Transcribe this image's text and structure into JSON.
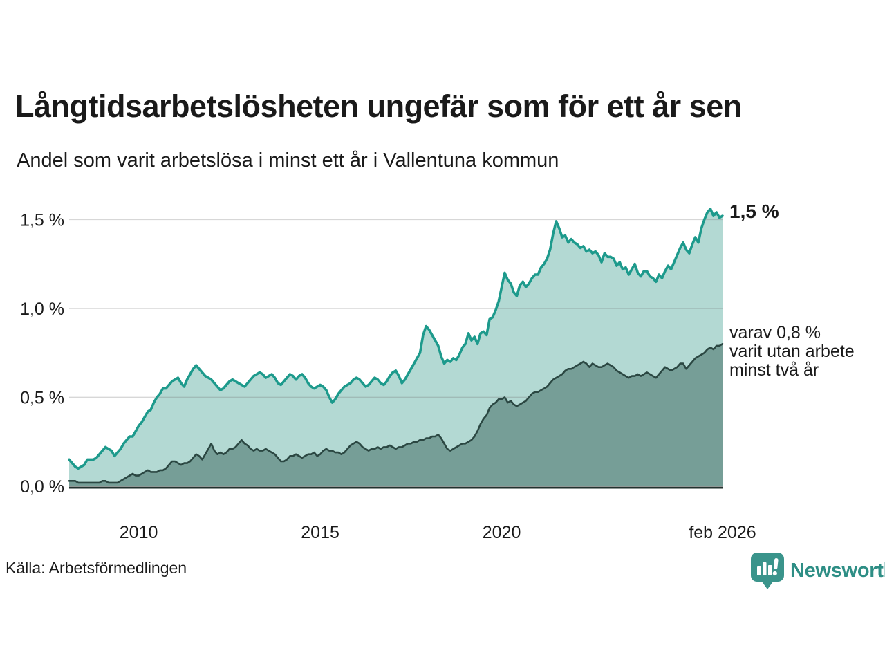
{
  "header": {
    "title": "Långtidsarbetslösheten ungefär som för ett år sen",
    "subtitle": "Andel som varit arbetslösa i minst ett år i Vallentuna kommun"
  },
  "annotations": {
    "end_value_label": "1,5 %",
    "secondary_line1": "varav 0,8 %",
    "secondary_line2": "varit utan arbete",
    "secondary_line3": "minst två år"
  },
  "footer": {
    "source": "Källa: Arbetsförmedlingen",
    "brand": "Newsworthy"
  },
  "colors": {
    "accent_line": "#1d9a8c",
    "accent_fill": "#b3d9d3",
    "ink_line": "#2b4742",
    "ink_fill": "#769e97",
    "axis": "#22312e",
    "grid": "#d7d7d7",
    "brand_teal": "#3a948b",
    "text": "#1a1a1a"
  },
  "chart_data": {
    "type": "area",
    "title": "Långtidsarbetslösheten ungefär som för ett år sen",
    "subtitle": "Andel som varit arbetslösa i minst ett år i Vallentuna kommun",
    "x_unit": "month",
    "x_start_decimal_year": 2008.0833,
    "x_end_decimal_year": 2026.0833,
    "x_end_label": "feb 2026",
    "ylim": [
      0,
      1.56
    ],
    "grid": true,
    "legend_position": "annotations-right",
    "yticks": [
      {
        "value": 0.0,
        "label": "0,0 %"
      },
      {
        "value": 0.5,
        "label": "0,5 %"
      },
      {
        "value": 1.0,
        "label": "1,0 %"
      },
      {
        "value": 1.5,
        "label": "1,5 %"
      }
    ],
    "xticks": [
      {
        "value": 2010,
        "label": "2010"
      },
      {
        "value": 2015,
        "label": "2015"
      },
      {
        "value": 2020,
        "label": "2020"
      },
      {
        "value": 2026.0833,
        "label": "feb 2026"
      }
    ],
    "series": [
      {
        "name": "Andel som varit arbetslösa i minst ett år",
        "end_label": "1,5 %",
        "end_value": 1.5,
        "values": [
          0.15,
          0.13,
          0.11,
          0.1,
          0.11,
          0.12,
          0.15,
          0.15,
          0.15,
          0.16,
          0.18,
          0.2,
          0.22,
          0.21,
          0.2,
          0.17,
          0.19,
          0.21,
          0.24,
          0.26,
          0.28,
          0.28,
          0.31,
          0.34,
          0.36,
          0.39,
          0.42,
          0.43,
          0.47,
          0.5,
          0.52,
          0.55,
          0.55,
          0.57,
          0.59,
          0.6,
          0.61,
          0.58,
          0.56,
          0.6,
          0.63,
          0.66,
          0.68,
          0.66,
          0.64,
          0.62,
          0.61,
          0.6,
          0.58,
          0.56,
          0.54,
          0.55,
          0.57,
          0.59,
          0.6,
          0.59,
          0.58,
          0.57,
          0.56,
          0.58,
          0.6,
          0.62,
          0.63,
          0.64,
          0.63,
          0.61,
          0.62,
          0.63,
          0.61,
          0.58,
          0.57,
          0.59,
          0.61,
          0.63,
          0.62,
          0.6,
          0.62,
          0.63,
          0.61,
          0.58,
          0.56,
          0.55,
          0.56,
          0.57,
          0.56,
          0.54,
          0.5,
          0.47,
          0.49,
          0.52,
          0.54,
          0.56,
          0.57,
          0.58,
          0.6,
          0.61,
          0.6,
          0.58,
          0.56,
          0.57,
          0.59,
          0.61,
          0.6,
          0.58,
          0.57,
          0.59,
          0.62,
          0.64,
          0.65,
          0.62,
          0.58,
          0.6,
          0.63,
          0.66,
          0.69,
          0.72,
          0.75,
          0.85,
          0.9,
          0.88,
          0.85,
          0.82,
          0.79,
          0.73,
          0.69,
          0.71,
          0.7,
          0.72,
          0.71,
          0.74,
          0.78,
          0.8,
          0.86,
          0.82,
          0.84,
          0.8,
          0.86,
          0.87,
          0.85,
          0.94,
          0.95,
          0.99,
          1.04,
          1.12,
          1.2,
          1.16,
          1.14,
          1.09,
          1.07,
          1.13,
          1.15,
          1.12,
          1.14,
          1.17,
          1.19,
          1.19,
          1.23,
          1.25,
          1.28,
          1.33,
          1.42,
          1.49,
          1.45,
          1.4,
          1.41,
          1.37,
          1.39,
          1.37,
          1.36,
          1.34,
          1.35,
          1.32,
          1.33,
          1.31,
          1.32,
          1.3,
          1.26,
          1.31,
          1.29,
          1.29,
          1.28,
          1.24,
          1.26,
          1.22,
          1.23,
          1.19,
          1.22,
          1.25,
          1.2,
          1.18,
          1.21,
          1.21,
          1.18,
          1.17,
          1.15,
          1.19,
          1.17,
          1.21,
          1.24,
          1.22,
          1.26,
          1.3,
          1.34,
          1.37,
          1.33,
          1.31,
          1.36,
          1.4,
          1.37,
          1.45,
          1.5,
          1.54,
          1.56,
          1.52,
          1.54,
          1.51,
          1.52
        ]
      },
      {
        "name": "varav utan arbete minst två år",
        "end_label": "varav 0,8 % varit utan arbete minst två år",
        "end_value": 0.8,
        "values": [
          0.03,
          0.03,
          0.03,
          0.02,
          0.02,
          0.02,
          0.02,
          0.02,
          0.02,
          0.02,
          0.02,
          0.03,
          0.03,
          0.02,
          0.02,
          0.02,
          0.02,
          0.03,
          0.04,
          0.05,
          0.06,
          0.07,
          0.06,
          0.06,
          0.07,
          0.08,
          0.09,
          0.08,
          0.08,
          0.08,
          0.09,
          0.09,
          0.1,
          0.12,
          0.14,
          0.14,
          0.13,
          0.12,
          0.13,
          0.13,
          0.14,
          0.16,
          0.18,
          0.17,
          0.15,
          0.18,
          0.21,
          0.24,
          0.2,
          0.18,
          0.19,
          0.18,
          0.19,
          0.21,
          0.21,
          0.22,
          0.24,
          0.26,
          0.24,
          0.23,
          0.21,
          0.2,
          0.21,
          0.2,
          0.2,
          0.21,
          0.2,
          0.19,
          0.18,
          0.16,
          0.14,
          0.14,
          0.15,
          0.17,
          0.17,
          0.18,
          0.17,
          0.16,
          0.17,
          0.18,
          0.18,
          0.19,
          0.17,
          0.18,
          0.2,
          0.21,
          0.2,
          0.2,
          0.19,
          0.19,
          0.18,
          0.19,
          0.21,
          0.23,
          0.24,
          0.25,
          0.24,
          0.22,
          0.21,
          0.2,
          0.21,
          0.21,
          0.22,
          0.21,
          0.22,
          0.22,
          0.23,
          0.22,
          0.21,
          0.22,
          0.22,
          0.23,
          0.24,
          0.24,
          0.25,
          0.25,
          0.26,
          0.26,
          0.27,
          0.27,
          0.28,
          0.28,
          0.29,
          0.27,
          0.24,
          0.21,
          0.2,
          0.21,
          0.22,
          0.23,
          0.24,
          0.24,
          0.25,
          0.26,
          0.28,
          0.31,
          0.35,
          0.38,
          0.4,
          0.44,
          0.46,
          0.47,
          0.49,
          0.49,
          0.5,
          0.47,
          0.48,
          0.46,
          0.45,
          0.46,
          0.47,
          0.48,
          0.5,
          0.52,
          0.53,
          0.53,
          0.54,
          0.55,
          0.56,
          0.58,
          0.6,
          0.61,
          0.62,
          0.63,
          0.65,
          0.66,
          0.66,
          0.67,
          0.68,
          0.69,
          0.7,
          0.69,
          0.67,
          0.69,
          0.68,
          0.67,
          0.67,
          0.68,
          0.69,
          0.68,
          0.67,
          0.65,
          0.64,
          0.63,
          0.62,
          0.61,
          0.62,
          0.62,
          0.63,
          0.62,
          0.63,
          0.64,
          0.63,
          0.62,
          0.61,
          0.63,
          0.65,
          0.67,
          0.66,
          0.65,
          0.66,
          0.67,
          0.69,
          0.69,
          0.66,
          0.68,
          0.7,
          0.72,
          0.73,
          0.74,
          0.75,
          0.77,
          0.78,
          0.77,
          0.79,
          0.79,
          0.8
        ]
      }
    ]
  }
}
